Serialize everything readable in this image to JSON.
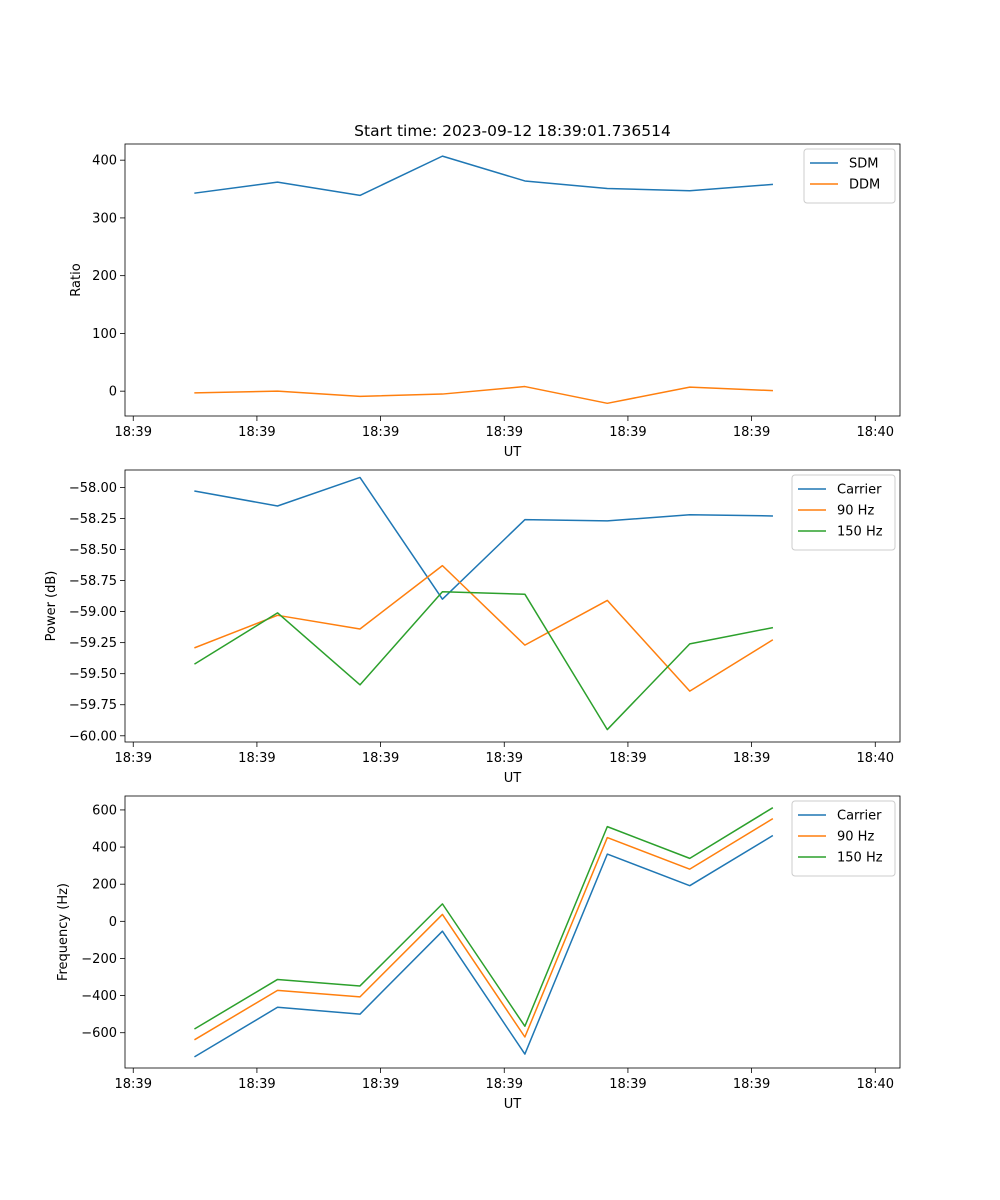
{
  "figure_title": "Start time: 2023-09-12 18:39:01.736514",
  "chart_data": [
    {
      "type": "line",
      "title": "Start time: 2023-09-12 18:39:01.736514",
      "xlabel": "UT",
      "ylabel": "Ratio",
      "xlim": [
        -0.85,
        8.55
      ],
      "ylim": [
        -43,
        428
      ],
      "xticks": [
        -0.75,
        0.75,
        2.25,
        3.75,
        5.25,
        6.75,
        8.25
      ],
      "xtick_labels": [
        "18:39",
        "18:39",
        "18:39",
        "18:39",
        "18:39",
        "18:39",
        "18:40"
      ],
      "yticks": [
        0,
        100,
        200,
        300,
        400
      ],
      "ytick_labels": [
        "0",
        "100",
        "200",
        "300",
        "400"
      ],
      "legend_position": "top-right",
      "x": [
        0,
        1,
        2,
        3,
        4,
        5,
        6,
        7
      ],
      "series": [
        {
          "name": "SDM",
          "color": "#1f77b4",
          "values": [
            343,
            362,
            339,
            407,
            364,
            351,
            347,
            358
          ]
        },
        {
          "name": "DDM",
          "color": "#ff7f0e",
          "values": [
            -3,
            0,
            -9,
            -5,
            8,
            -21,
            7,
            1
          ]
        }
      ]
    },
    {
      "type": "line",
      "title": "",
      "xlabel": "UT",
      "ylabel": "Power (dB)",
      "xlim": [
        -0.85,
        8.55
      ],
      "ylim": [
        -60.05,
        -57.86
      ],
      "xticks": [
        -0.75,
        0.75,
        2.25,
        3.75,
        5.25,
        6.75,
        8.25
      ],
      "xtick_labels": [
        "18:39",
        "18:39",
        "18:39",
        "18:39",
        "18:39",
        "18:39",
        "18:40"
      ],
      "yticks": [
        -60.0,
        -59.75,
        -59.5,
        -59.25,
        -59.0,
        -58.75,
        -58.5,
        -58.25,
        -58.0
      ],
      "ytick_labels": [
        "−60.00",
        "−59.75",
        "−59.50",
        "−59.25",
        "−59.00",
        "−58.75",
        "−58.50",
        "−58.25",
        "−58.00"
      ],
      "legend_position": "top-right",
      "x": [
        0,
        1,
        2,
        3,
        4,
        5,
        6,
        7
      ],
      "series": [
        {
          "name": "Carrier",
          "color": "#1f77b4",
          "values": [
            -58.03,
            -58.15,
            -57.92,
            -58.9,
            -58.26,
            -58.27,
            -58.22,
            -58.23
          ]
        },
        {
          "name": "90 Hz",
          "color": "#ff7f0e",
          "values": [
            -59.29,
            -59.03,
            -59.14,
            -58.63,
            -59.27,
            -58.91,
            -59.64,
            -59.23
          ]
        },
        {
          "name": "150 Hz",
          "color": "#2ca02c",
          "values": [
            -59.42,
            -59.01,
            -59.59,
            -58.84,
            -58.86,
            -59.95,
            -59.26,
            -59.13
          ]
        }
      ]
    },
    {
      "type": "line",
      "title": "",
      "xlabel": "UT",
      "ylabel": "Frequency (Hz)",
      "xlim": [
        -0.85,
        8.55
      ],
      "ylim": [
        -790,
        675
      ],
      "xticks": [
        -0.75,
        0.75,
        2.25,
        3.75,
        5.25,
        6.75,
        8.25
      ],
      "xtick_labels": [
        "18:39",
        "18:39",
        "18:39",
        "18:39",
        "18:39",
        "18:39",
        "18:40"
      ],
      "yticks": [
        -600,
        -400,
        -200,
        0,
        200,
        400,
        600
      ],
      "ytick_labels": [
        "−600",
        "−400",
        "−200",
        "0",
        "200",
        "400",
        "600"
      ],
      "legend_position": "top-right",
      "x": [
        0,
        1,
        2,
        3,
        4,
        5,
        6,
        7
      ],
      "series": [
        {
          "name": "Carrier",
          "color": "#1f77b4",
          "values": [
            -728,
            -463,
            -500,
            -53,
            -715,
            362,
            192,
            460
          ]
        },
        {
          "name": "90 Hz",
          "color": "#ff7f0e",
          "values": [
            -636,
            -372,
            -407,
            37,
            -623,
            451,
            281,
            551
          ]
        },
        {
          "name": "150 Hz",
          "color": "#2ca02c",
          "values": [
            -578,
            -313,
            -348,
            94,
            -565,
            510,
            339,
            610
          ]
        }
      ]
    }
  ]
}
